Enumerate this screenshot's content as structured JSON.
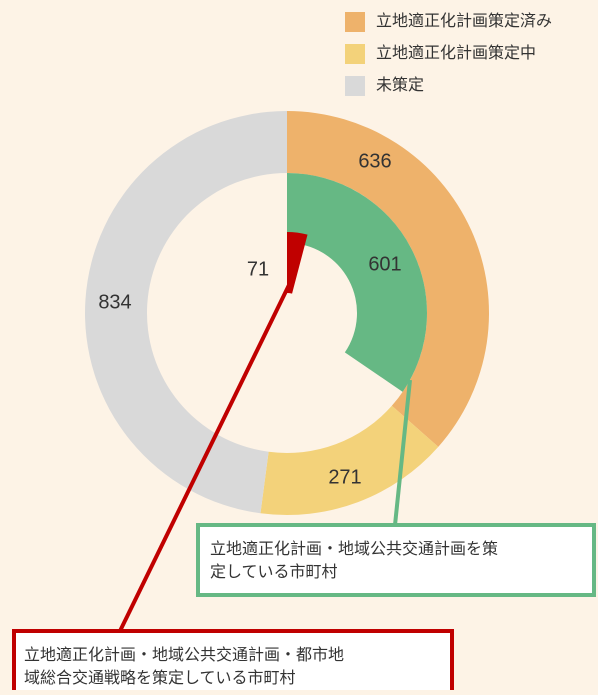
{
  "chart_data": {
    "type": "nested-donut",
    "categories": [
      "立地適正化計画策定済み",
      "立地適正化計画策定中",
      "未策定"
    ],
    "values": [
      636,
      271,
      834
    ],
    "colors": [
      "#eeb26b",
      "#f3d27a",
      "#d9d9d9"
    ],
    "inner": [
      {
        "values": [
          601
        ],
        "color": "#66b884",
        "annotation": [
          "立地適正化計画・地域公共交通計画を策",
          "定している市町村"
        ]
      },
      {
        "values": [
          71
        ],
        "color": "#c00000",
        "annotation": [
          "立地適正化計画・地域公共交通計画・都市地",
          "域総合交通戦略を策定している市町村"
        ]
      }
    ]
  }
}
